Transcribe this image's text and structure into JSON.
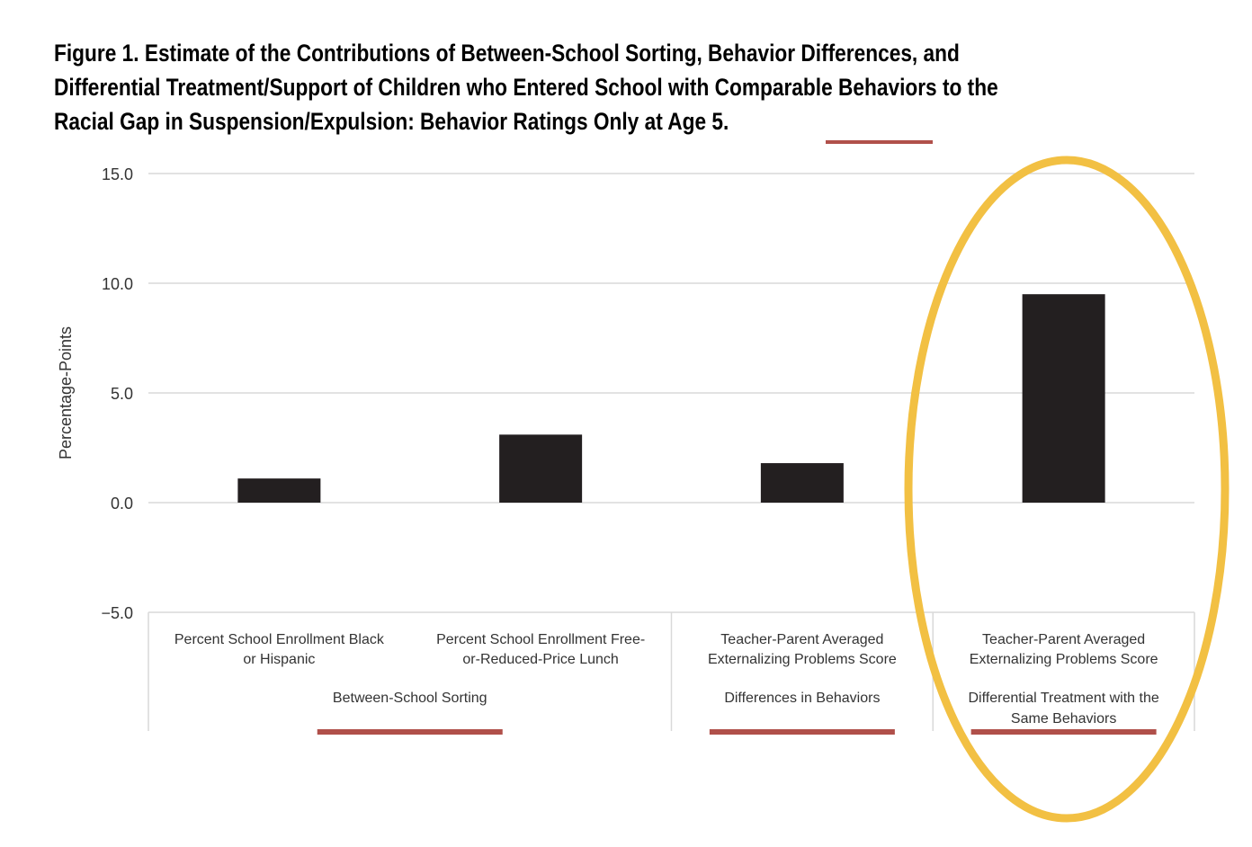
{
  "title": "Figure 1.  Estimate of the Contributions of Between-School Sorting, Behavior Differences, and Differential Treatment/Support of Children who Entered School with Comparable Behaviors to the Racial Gap in Suspension/Expulsion: Behavior Ratings Only at Age 5.",
  "chart_data": {
    "type": "bar",
    "ylabel": "Percentage-Points",
    "xlabel": "",
    "ylim": [
      -5.0,
      15.0
    ],
    "yticks": [
      "15.0",
      "10.0",
      "5.0",
      "0.0",
      "−5.0"
    ],
    "grid": true,
    "categories": [
      "Percent School Enrollment Black or Hispanic",
      "Percent School Enrollment Free-or-Reduced-Price Lunch",
      "Teacher-Parent Averaged Externalizing Problems Score",
      "Teacher-Parent Averaged Externalizing Problems Score"
    ],
    "category_lines": [
      [
        "Percent School Enrollment Black",
        "or Hispanic"
      ],
      [
        "Percent School Enrollment Free-",
        "or-Reduced-Price Lunch"
      ],
      [
        "Teacher-Parent Averaged",
        "Externalizing Problems Score"
      ],
      [
        "Teacher-Parent Averaged",
        "Externalizing Problems Score"
      ]
    ],
    "groups": [
      {
        "label_lines": [
          "Between-School Sorting"
        ],
        "categories": [
          0,
          1
        ]
      },
      {
        "label_lines": [
          "Differences in Behaviors"
        ],
        "categories": [
          2
        ]
      },
      {
        "label_lines": [
          "Differential Treatment with the",
          "Same Behaviors"
        ],
        "categories": [
          3
        ]
      }
    ],
    "values": [
      1.1,
      3.1,
      1.8,
      9.5
    ],
    "bar_color": "#231f20",
    "grid_color": "#d9d9d9"
  },
  "annotations": {
    "underline_color": "#b0504a",
    "highlight_ellipse_color": "#f2c043"
  }
}
